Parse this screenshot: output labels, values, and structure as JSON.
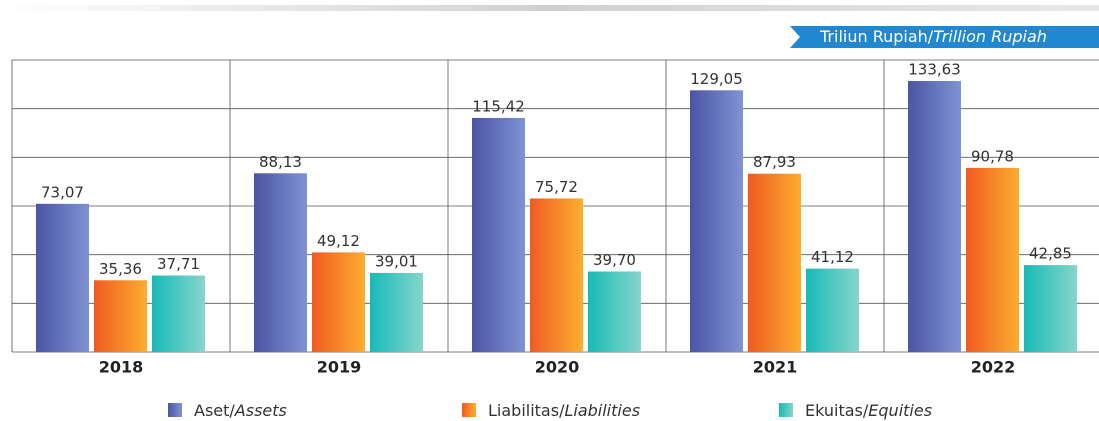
{
  "chart_data": {
    "type": "bar",
    "unit": [
      "Triliun Rupiah/",
      "Trillion Rupiah"
    ],
    "categories": [
      "2018",
      "2019",
      "2020",
      "2021",
      "2022"
    ],
    "series": [
      {
        "name": "Aset/Assets",
        "color": [
          "#4a55a5",
          "#7f93d3"
        ],
        "values": [
          73.07,
          88.13,
          115.42,
          129.05,
          133.63
        ],
        "value_labels": [
          "73,07",
          "88,13",
          "115,42",
          "129,05",
          "133,63"
        ]
      },
      {
        "name": "Liabilitas/Liabilities",
        "color": [
          "#f05a22",
          "#fbae2f"
        ],
        "values": [
          35.36,
          49.12,
          75.72,
          87.93,
          90.78
        ],
        "value_labels": [
          "35,36",
          "49,12",
          "75,72",
          "87,93",
          "90,78"
        ]
      },
      {
        "name": "Ekuitas/Equities",
        "color": [
          "#16bbb7",
          "#86d5cb"
        ],
        "values": [
          37.71,
          39.01,
          39.7,
          41.12,
          42.85
        ],
        "value_labels": [
          "37,71",
          "39,01",
          "39,70",
          "41,12",
          "42,85"
        ]
      }
    ],
    "ylim": [
      0,
      144
    ],
    "yticks": [
      0,
      24,
      48,
      72,
      96,
      120,
      144
    ],
    "grid": true
  }
}
